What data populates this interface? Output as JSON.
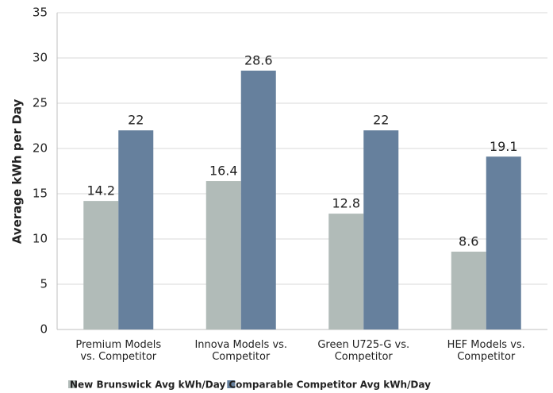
{
  "chart_data": {
    "type": "bar",
    "y_label": "Average kWh per Day",
    "categories": [
      "Premium Models vs. Competitor",
      "Innova Models vs. Competitor",
      "Green U725-G vs. Competitor",
      "HEF Models vs. Competitor"
    ],
    "series": [
      {
        "name": "New Brunswick Avg kWh/Day",
        "color": "#b1bbb8",
        "values": [
          14.2,
          16.4,
          12.8,
          8.6
        ]
      },
      {
        "name": "Comparable Competitor Avg kWh/Day",
        "color": "#66809d",
        "values": [
          22,
          28.6,
          22,
          19.1
        ]
      }
    ],
    "ylim": [
      0,
      35
    ],
    "yticks": [
      0,
      5,
      10,
      15,
      20,
      25,
      30,
      35
    ],
    "grid": true
  }
}
